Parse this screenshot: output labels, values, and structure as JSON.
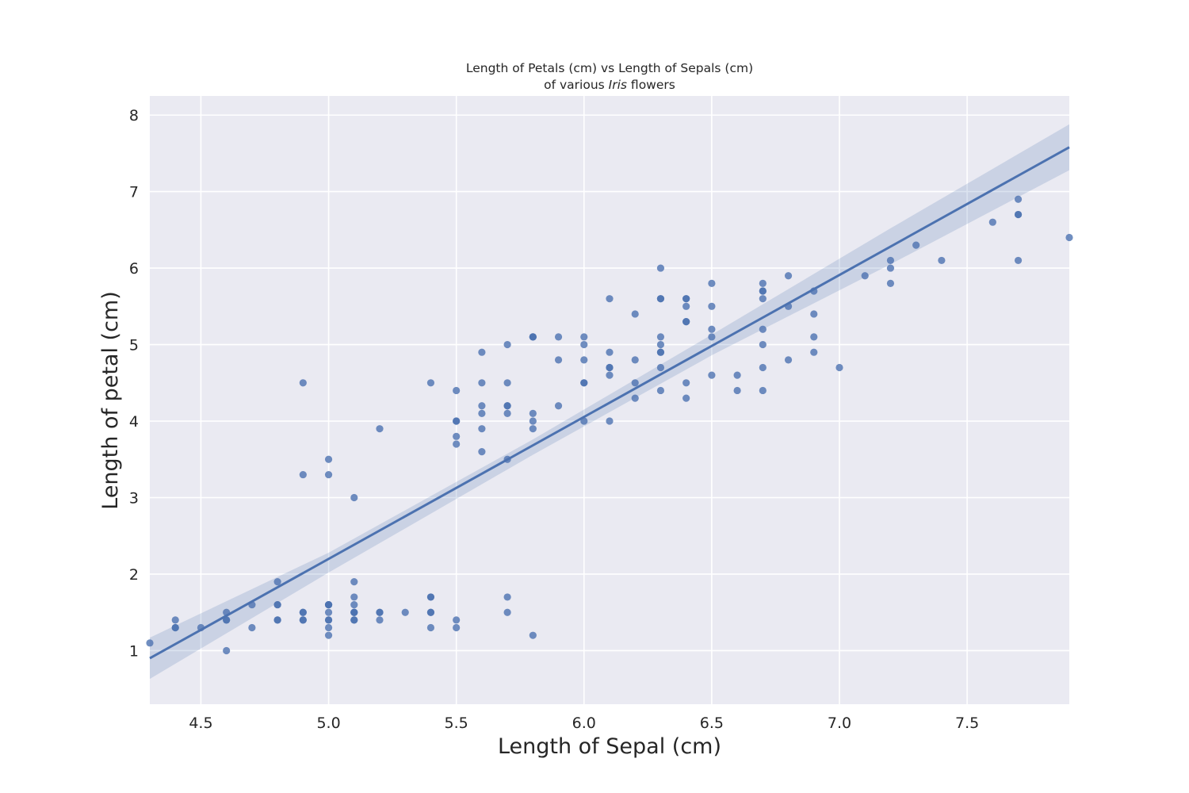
{
  "chart_data": {
    "type": "scatter",
    "title_line1": "Length of Petals (cm) vs Length of Sepals (cm)",
    "title_line2_prefix": "of various ",
    "title_line2_italic": "Iris",
    "title_line2_suffix": " flowers",
    "xlabel": "Length of Sepal (cm)",
    "ylabel": "Length of petal (cm)",
    "xlim": [
      4.3,
      7.9
    ],
    "ylim": [
      0.3,
      8.25
    ],
    "xticks": [
      4.5,
      5.0,
      5.5,
      6.0,
      6.5,
      7.0,
      7.5
    ],
    "xtick_labels": [
      "4.5",
      "5.0",
      "5.5",
      "6.0",
      "6.5",
      "7.0",
      "7.5"
    ],
    "yticks": [
      1,
      2,
      3,
      4,
      5,
      6,
      7,
      8
    ],
    "ytick_labels": [
      "1",
      "2",
      "3",
      "4",
      "5",
      "6",
      "7",
      "8"
    ],
    "grid": true,
    "background_color": "#eaeaf2",
    "point_color": "#4c72b0",
    "regression_line": {
      "start": [
        4.3,
        0.9
      ],
      "end": [
        7.9,
        7.58
      ]
    },
    "confidence_band": {
      "x": [
        4.3,
        5.0,
        5.8,
        6.5,
        7.2,
        7.9
      ],
      "lower": [
        0.63,
        2.02,
        3.56,
        4.86,
        6.05,
        7.28
      ],
      "upper": [
        1.17,
        2.28,
        3.76,
        5.13,
        6.52,
        7.88
      ]
    },
    "points": [
      [
        5.1,
        1.4
      ],
      [
        4.9,
        1.4
      ],
      [
        4.7,
        1.3
      ],
      [
        4.6,
        1.5
      ],
      [
        5.0,
        1.4
      ],
      [
        5.4,
        1.7
      ],
      [
        4.6,
        1.4
      ],
      [
        5.0,
        1.5
      ],
      [
        4.4,
        1.4
      ],
      [
        4.9,
        1.5
      ],
      [
        5.4,
        1.5
      ],
      [
        4.8,
        1.6
      ],
      [
        4.8,
        1.4
      ],
      [
        4.3,
        1.1
      ],
      [
        5.8,
        1.2
      ],
      [
        5.7,
        1.5
      ],
      [
        5.4,
        1.3
      ],
      [
        5.1,
        1.4
      ],
      [
        5.7,
        1.7
      ],
      [
        5.1,
        1.5
      ],
      [
        5.4,
        1.7
      ],
      [
        5.1,
        1.5
      ],
      [
        4.6,
        1.0
      ],
      [
        5.1,
        1.7
      ],
      [
        4.8,
        1.9
      ],
      [
        5.0,
        1.6
      ],
      [
        5.0,
        1.6
      ],
      [
        5.2,
        1.5
      ],
      [
        5.2,
        1.4
      ],
      [
        4.7,
        1.6
      ],
      [
        4.8,
        1.6
      ],
      [
        5.4,
        1.5
      ],
      [
        5.2,
        1.5
      ],
      [
        5.5,
        1.4
      ],
      [
        4.9,
        1.5
      ],
      [
        5.0,
        1.2
      ],
      [
        5.5,
        1.3
      ],
      [
        4.9,
        1.4
      ],
      [
        4.4,
        1.3
      ],
      [
        5.1,
        1.5
      ],
      [
        5.0,
        1.3
      ],
      [
        4.5,
        1.3
      ],
      [
        4.4,
        1.3
      ],
      [
        5.0,
        1.6
      ],
      [
        5.1,
        1.9
      ],
      [
        4.8,
        1.4
      ],
      [
        5.1,
        1.6
      ],
      [
        4.6,
        1.4
      ],
      [
        5.3,
        1.5
      ],
      [
        5.0,
        1.4
      ],
      [
        7.0,
        4.7
      ],
      [
        6.4,
        4.5
      ],
      [
        6.9,
        4.9
      ],
      [
        5.5,
        4.0
      ],
      [
        6.5,
        4.6
      ],
      [
        5.7,
        4.5
      ],
      [
        6.3,
        4.7
      ],
      [
        4.9,
        3.3
      ],
      [
        6.6,
        4.6
      ],
      [
        5.2,
        3.9
      ],
      [
        5.0,
        3.5
      ],
      [
        5.9,
        4.2
      ],
      [
        6.0,
        4.0
      ],
      [
        6.1,
        4.7
      ],
      [
        5.6,
        3.6
      ],
      [
        6.7,
        4.4
      ],
      [
        5.6,
        4.5
      ],
      [
        5.8,
        4.1
      ],
      [
        6.2,
        4.5
      ],
      [
        5.6,
        3.9
      ],
      [
        5.9,
        4.8
      ],
      [
        6.1,
        4.0
      ],
      [
        6.3,
        4.9
      ],
      [
        6.1,
        4.7
      ],
      [
        6.4,
        4.3
      ],
      [
        6.6,
        4.4
      ],
      [
        6.8,
        4.8
      ],
      [
        6.7,
        5.0
      ],
      [
        6.0,
        4.5
      ],
      [
        5.7,
        3.5
      ],
      [
        5.5,
        3.8
      ],
      [
        5.5,
        3.7
      ],
      [
        5.8,
        3.9
      ],
      [
        6.0,
        5.1
      ],
      [
        5.4,
        4.5
      ],
      [
        6.0,
        4.5
      ],
      [
        6.7,
        4.7
      ],
      [
        6.3,
        4.4
      ],
      [
        5.6,
        4.1
      ],
      [
        5.5,
        4.0
      ],
      [
        5.5,
        4.4
      ],
      [
        6.1,
        4.6
      ],
      [
        5.8,
        4.0
      ],
      [
        5.0,
        3.3
      ],
      [
        5.6,
        4.2
      ],
      [
        5.7,
        4.2
      ],
      [
        5.7,
        4.2
      ],
      [
        6.2,
        4.3
      ],
      [
        5.1,
        3.0
      ],
      [
        5.7,
        4.1
      ],
      [
        6.3,
        6.0
      ],
      [
        5.8,
        5.1
      ],
      [
        7.1,
        5.9
      ],
      [
        6.3,
        5.6
      ],
      [
        6.5,
        5.8
      ],
      [
        7.6,
        6.6
      ],
      [
        4.9,
        4.5
      ],
      [
        7.3,
        6.3
      ],
      [
        6.7,
        5.8
      ],
      [
        7.2,
        6.1
      ],
      [
        6.5,
        5.1
      ],
      [
        6.4,
        5.3
      ],
      [
        6.8,
        5.5
      ],
      [
        5.7,
        5.0
      ],
      [
        5.8,
        5.1
      ],
      [
        6.4,
        5.3
      ],
      [
        6.5,
        5.5
      ],
      [
        7.7,
        6.7
      ],
      [
        7.7,
        6.9
      ],
      [
        6.0,
        5.0
      ],
      [
        6.9,
        5.7
      ],
      [
        5.6,
        4.9
      ],
      [
        7.7,
        6.7
      ],
      [
        6.3,
        4.9
      ],
      [
        6.7,
        5.7
      ],
      [
        7.2,
        6.0
      ],
      [
        6.2,
        4.8
      ],
      [
        6.1,
        4.9
      ],
      [
        6.4,
        5.6
      ],
      [
        7.2,
        5.8
      ],
      [
        7.4,
        6.1
      ],
      [
        7.9,
        6.4
      ],
      [
        6.4,
        5.6
      ],
      [
        6.3,
        5.1
      ],
      [
        6.1,
        5.6
      ],
      [
        7.7,
        6.1
      ],
      [
        6.3,
        5.6
      ],
      [
        6.4,
        5.5
      ],
      [
        6.0,
        4.8
      ],
      [
        6.9,
        5.4
      ],
      [
        6.7,
        5.6
      ],
      [
        6.9,
        5.1
      ],
      [
        5.8,
        5.1
      ],
      [
        6.8,
        5.9
      ],
      [
        6.7,
        5.7
      ],
      [
        6.7,
        5.2
      ],
      [
        6.3,
        5.0
      ],
      [
        6.5,
        5.2
      ],
      [
        6.2,
        5.4
      ],
      [
        5.9,
        5.1
      ]
    ]
  }
}
